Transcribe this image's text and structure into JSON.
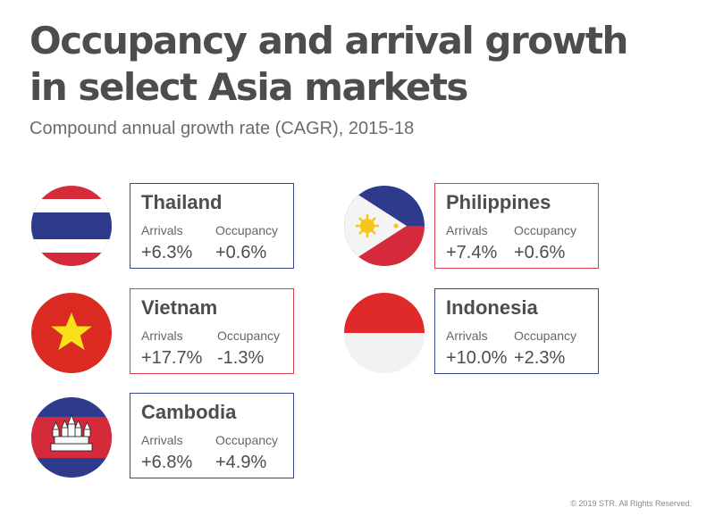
{
  "title": "Occupancy and arrival growth in select Asia markets",
  "subtitle": "Compound annual growth rate (CAGR), 2015-18",
  "labels": {
    "arrivals": "Arrivals",
    "occupancy": "Occupancy"
  },
  "markets": [
    {
      "country": "Thailand",
      "arrivals": "+6.3%",
      "occupancy": "+0.6%",
      "border_color": "#3a4590",
      "flag_icon": "thailand-flag-icon"
    },
    {
      "country": "Philippines",
      "arrivals": "+7.4%",
      "occupancy": "+0.6%",
      "border_color": "#d43a4f",
      "flag_icon": "philippines-flag-icon"
    },
    {
      "country": "Vietnam",
      "arrivals": "+17.7%",
      "occupancy": "-1.3%",
      "border_color": "#d43a4f",
      "flag_icon": "vietnam-flag-icon"
    },
    {
      "country": "Indonesia",
      "arrivals": "+10.0%",
      "occupancy": "+2.3%",
      "border_color": "#3a4590",
      "flag_icon": "indonesia-flag-icon"
    },
    {
      "country": "Cambodia",
      "arrivals": "+6.8%",
      "occupancy": "+4.9%",
      "border_color": "#3a4590",
      "flag_icon": "cambodia-flag-icon"
    }
  ],
  "colors": {
    "navy": "#3a4590",
    "red": "#d43a4f",
    "text": "#4d4d4d"
  },
  "copyright": "© 2019 STR. All Rights Reserved."
}
